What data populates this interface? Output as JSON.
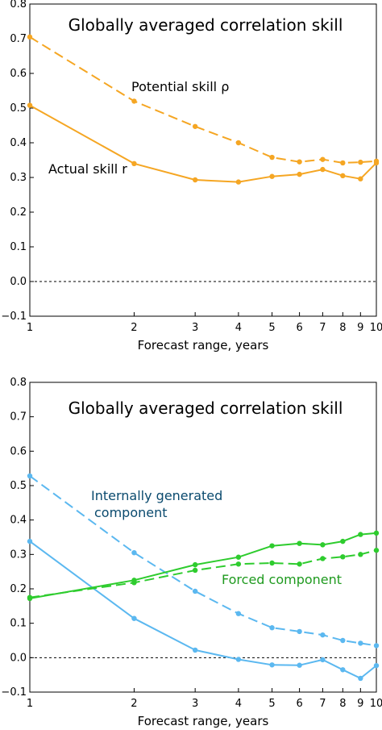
{
  "chart_data": [
    {
      "type": "line",
      "title": "Globally averaged correlation skill",
      "xlabel": "Forecast range, years",
      "ylabel": "",
      "x_scale": "log",
      "xlim": [
        1,
        10
      ],
      "ylim": [
        -0.1,
        0.8
      ],
      "x_ticks": [
        "1",
        "2",
        "3",
        "4",
        "5",
        "6",
        "7",
        "8",
        "9",
        "10"
      ],
      "y_ticks": [
        "−0.1",
        "0.0",
        "0.1",
        "0.2",
        "0.3",
        "0.4",
        "0.5",
        "0.6",
        "0.7",
        "0.8"
      ],
      "zero_line": "dotted",
      "grid": false,
      "x": [
        1,
        2,
        3,
        4,
        5,
        6,
        7,
        8,
        9,
        10
      ],
      "series": [
        {
          "name": "Potential skill ρ",
          "color": "#f5a623",
          "style": "dashed",
          "values": [
            0.705,
            0.52,
            0.447,
            0.4,
            0.358,
            0.345,
            0.352,
            0.342,
            0.344,
            0.347
          ]
        },
        {
          "name": "Actual skill r",
          "color": "#f5a623",
          "style": "solid",
          "values": [
            0.508,
            0.34,
            0.293,
            0.287,
            0.303,
            0.309,
            0.323,
            0.305,
            0.296,
            0.342
          ]
        }
      ]
    },
    {
      "type": "line",
      "title": "Globally averaged correlation skill",
      "xlabel": "Forecast range, years",
      "ylabel": "",
      "x_scale": "log",
      "xlim": [
        1,
        10
      ],
      "ylim": [
        -0.1,
        0.8
      ],
      "x_ticks": [
        "1",
        "2",
        "3",
        "4",
        "5",
        "6",
        "7",
        "8",
        "9",
        "10"
      ],
      "y_ticks": [
        "−0.1",
        "0.0",
        "0.1",
        "0.2",
        "0.3",
        "0.4",
        "0.5",
        "0.6",
        "0.7",
        "0.8"
      ],
      "zero_line": "dotted",
      "grid": false,
      "x": [
        1,
        2,
        3,
        4,
        5,
        6,
        7,
        8,
        9,
        10
      ],
      "labels": {
        "internal_line1": "Internally generated",
        "internal_line2": "component",
        "forced": "Forced component"
      },
      "series": [
        {
          "name": "Internally generated component",
          "color": "#5bb8f0",
          "style": "dashed",
          "values": [
            0.528,
            0.305,
            0.193,
            0.128,
            0.087,
            0.076,
            0.066,
            0.05,
            0.042,
            0.035
          ]
        },
        {
          "name": "Internally generated component",
          "color": "#5bb8f0",
          "style": "solid",
          "values": [
            0.338,
            0.114,
            0.022,
            -0.005,
            -0.021,
            -0.022,
            -0.006,
            -0.035,
            -0.06,
            -0.023
          ]
        },
        {
          "name": "Forced component",
          "color": "#2ecc2e",
          "style": "solid",
          "values": [
            0.172,
            0.225,
            0.27,
            0.292,
            0.325,
            0.332,
            0.328,
            0.338,
            0.358,
            0.362
          ]
        },
        {
          "name": "Forced component",
          "color": "#2ecc2e",
          "style": "dashed",
          "values": [
            0.175,
            0.218,
            0.254,
            0.272,
            0.275,
            0.272,
            0.288,
            0.293,
            0.3,
            0.312
          ]
        }
      ]
    }
  ],
  "colors": {
    "top_annotation": "#000000",
    "internal_label": "#0a4a6e",
    "forced_label": "#1f9a1f"
  }
}
